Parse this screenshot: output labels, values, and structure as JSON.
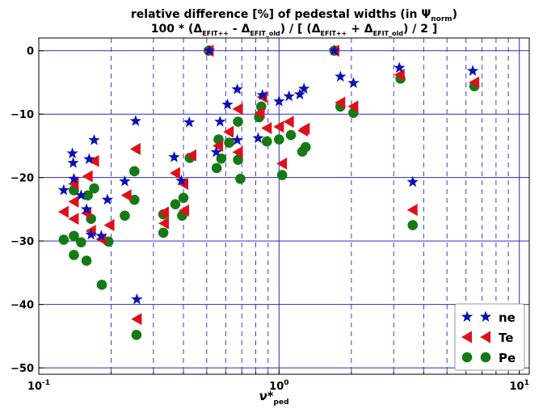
{
  "chart_data": {
    "type": "scatter",
    "title_line1": "relative difference [%] of pedestal widths (in Ψ",
    "title_line1_sub": "norm",
    "title_line1_end": ")",
    "title_line2": {
      "p1": "100 * (Δ",
      "s1": "EFIT++",
      "p2": " - Δ",
      "s2": "EFIT_old",
      "p3": ") / [ (Δ",
      "s3": "EFIT++",
      "p4": " + Δ",
      "s4": "EFIT_old",
      "p5": ") / 2 ]"
    },
    "xlabel": "ν*",
    "xlabel_sub": "ped",
    "ylabel": "",
    "xscale": "log",
    "xlim": [
      0.1,
      11
    ],
    "ylim": [
      -51,
      2
    ],
    "grid": true,
    "legend_position": "bottom-right",
    "x_ticks": [
      {
        "value": 0.1,
        "base": "10",
        "exp": "-1"
      },
      {
        "value": 1,
        "base": "10",
        "exp": "0"
      },
      {
        "value": 10,
        "base": "10",
        "exp": "1"
      }
    ],
    "y_ticks": [
      {
        "value": 0,
        "label": "0"
      },
      {
        "value": -10,
        "label": "−10"
      },
      {
        "value": -20,
        "label": "−20"
      },
      {
        "value": -30,
        "label": "−30"
      },
      {
        "value": -40,
        "label": "−40"
      },
      {
        "value": -50,
        "label": "−50"
      }
    ],
    "series": [
      {
        "name": "ne",
        "marker": "star",
        "color": "#0a10b4",
        "points": [
          [
            0.127,
            -22
          ],
          [
            0.138,
            -16.2
          ],
          [
            0.139,
            -17.7
          ],
          [
            0.14,
            -20.2
          ],
          [
            0.15,
            -22.8
          ],
          [
            0.158,
            -25
          ],
          [
            0.162,
            -17.1
          ],
          [
            0.165,
            -29
          ],
          [
            0.17,
            -14.1
          ],
          [
            0.182,
            -29.2
          ],
          [
            0.193,
            -23.5
          ],
          [
            0.228,
            -20.6
          ],
          [
            0.253,
            -11.1
          ],
          [
            0.256,
            -39.2
          ],
          [
            0.366,
            -16.8
          ],
          [
            0.392,
            -20.5
          ],
          [
            0.423,
            -11.3
          ],
          [
            0.513,
            0
          ],
          [
            0.548,
            -16
          ],
          [
            0.568,
            -11.2
          ],
          [
            0.61,
            -8.5
          ],
          [
            0.67,
            -6.1
          ],
          [
            0.67,
            -14.1
          ],
          [
            0.818,
            -13.8
          ],
          [
            0.853,
            -7
          ],
          [
            1.0,
            -8
          ],
          [
            1.1,
            -7.2
          ],
          [
            1.22,
            -6.9
          ],
          [
            1.27,
            -6
          ],
          [
            1.7,
            0
          ],
          [
            1.8,
            -4.1
          ],
          [
            2.04,
            -5.1
          ],
          [
            3.17,
            -2.7
          ],
          [
            3.6,
            -20.7
          ],
          [
            6.4,
            -3.2
          ]
        ]
      },
      {
        "name": "Te",
        "marker": "triangle-left",
        "color": "#e0101a",
        "points": [
          [
            0.127,
            -25.4
          ],
          [
            0.14,
            -23.8
          ],
          [
            0.14,
            -26.5
          ],
          [
            0.14,
            -21
          ],
          [
            0.16,
            -19.8
          ],
          [
            0.158,
            -25.6
          ],
          [
            0.17,
            -17.4
          ],
          [
            0.165,
            -28.4
          ],
          [
            0.182,
            -29.7
          ],
          [
            0.197,
            -27.5
          ],
          [
            0.232,
            -22.8
          ],
          [
            0.253,
            -15.5
          ],
          [
            0.256,
            -42.3
          ],
          [
            0.332,
            -25.5
          ],
          [
            0.332,
            -27.2
          ],
          [
            0.37,
            -19.3
          ],
          [
            0.4,
            -21
          ],
          [
            0.403,
            -25.2
          ],
          [
            0.432,
            -16.5
          ],
          [
            0.51,
            0
          ],
          [
            0.558,
            -15
          ],
          [
            0.618,
            -12.8
          ],
          [
            0.675,
            -9.2
          ],
          [
            0.675,
            -16
          ],
          [
            0.832,
            -9.8
          ],
          [
            0.852,
            -7.3
          ],
          [
            0.89,
            -12.2
          ],
          [
            1.0,
            -12
          ],
          [
            1.03,
            -17.8
          ],
          [
            1.1,
            -11.2
          ],
          [
            1.26,
            -12.6
          ],
          [
            1.28,
            -12.3
          ],
          [
            1.7,
            0
          ],
          [
            1.8,
            -8.2
          ],
          [
            2.04,
            -8.8
          ],
          [
            3.18,
            -3.8
          ],
          [
            3.6,
            -25.1
          ],
          [
            6.5,
            -5
          ]
        ]
      },
      {
        "name": "Pe",
        "marker": "circle",
        "color": "#157a15",
        "points": [
          [
            0.127,
            -29.8
          ],
          [
            0.14,
            -22
          ],
          [
            0.14,
            -29.2
          ],
          [
            0.14,
            -32.2
          ],
          [
            0.15,
            -30.2
          ],
          [
            0.16,
            -22.8
          ],
          [
            0.158,
            -33.1
          ],
          [
            0.165,
            -26.5
          ],
          [
            0.17,
            -21.7
          ],
          [
            0.183,
            -36.9
          ],
          [
            0.195,
            -30.1
          ],
          [
            0.228,
            -26
          ],
          [
            0.25,
            -19
          ],
          [
            0.25,
            -23.5
          ],
          [
            0.255,
            -44.8
          ],
          [
            0.33,
            -28.7
          ],
          [
            0.33,
            -25.8
          ],
          [
            0.37,
            -24.2
          ],
          [
            0.4,
            -23.2
          ],
          [
            0.395,
            -26
          ],
          [
            0.425,
            -16.9
          ],
          [
            0.51,
            0
          ],
          [
            0.55,
            -18.5
          ],
          [
            0.56,
            -14
          ],
          [
            0.575,
            -17
          ],
          [
            0.62,
            -14.5
          ],
          [
            0.675,
            -11.2
          ],
          [
            0.675,
            -17.2
          ],
          [
            0.69,
            -20.2
          ],
          [
            0.826,
            -10.5
          ],
          [
            0.843,
            -8.8
          ],
          [
            0.89,
            -14.3
          ],
          [
            1.0,
            -14
          ],
          [
            1.03,
            -19.6
          ],
          [
            1.12,
            -13.3
          ],
          [
            1.25,
            -15.9
          ],
          [
            1.29,
            -15.2
          ],
          [
            1.7,
            0
          ],
          [
            1.8,
            -8.8
          ],
          [
            2.04,
            -9.8
          ],
          [
            3.2,
            -4.4
          ],
          [
            3.6,
            -27.5
          ],
          [
            6.5,
            -5.6
          ]
        ]
      }
    ]
  }
}
